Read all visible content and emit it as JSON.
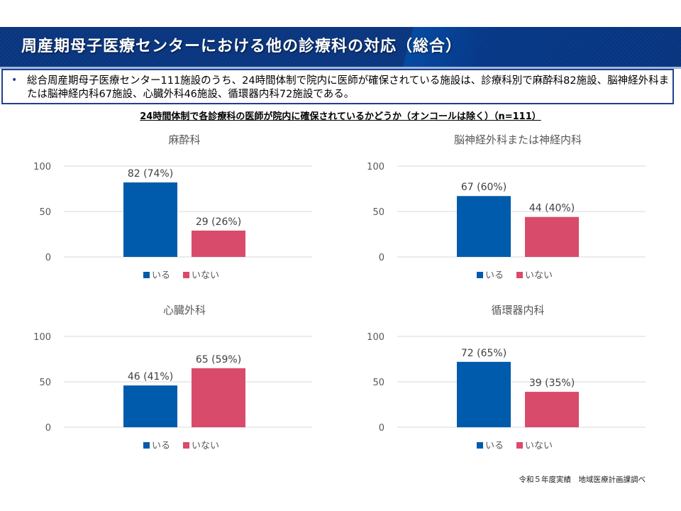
{
  "header": {
    "title": "周産期母子医療センターにおける他の診療科の対応（総合）"
  },
  "summary": {
    "bullet": "•",
    "text": "総合周産期母子医療センター111施設のうち、24時間体制で院内に医師が確保されている施設は、診療科別で麻酔科82施設、脳神経外科または脳神経内科67施設、心臓外科46施設、循環器内科72施設である。"
  },
  "chart_heading": "24時間体制で各診療科の医師が院内に確保されているかどうか（オンコールは除く）（n=111）",
  "colors": {
    "present": "#005bac",
    "absent": "#d94b6a",
    "grid": "#d9d9d9",
    "header_bg": "#0d3b86"
  },
  "chart_data": [
    {
      "type": "bar",
      "title": "麻酔科",
      "categories": [
        "いる",
        "いない"
      ],
      "values": [
        82,
        29
      ],
      "data_labels": [
        "82 (74%)",
        "29 (26%)"
      ],
      "legend": [
        "いる",
        "いない"
      ],
      "legend_position": "bottom",
      "yticks": [
        0,
        50,
        100
      ],
      "ylim": [
        0,
        100
      ],
      "grid": true,
      "xlabel": "",
      "ylabel": ""
    },
    {
      "type": "bar",
      "title": "脳神経外科または神経内科",
      "categories": [
        "いる",
        "いない"
      ],
      "values": [
        67,
        44
      ],
      "data_labels": [
        "67 (60%)",
        "44 (40%)"
      ],
      "legend": [
        "いる",
        "いない"
      ],
      "legend_position": "bottom",
      "yticks": [
        0,
        50,
        100
      ],
      "ylim": [
        0,
        100
      ],
      "grid": true,
      "xlabel": "",
      "ylabel": ""
    },
    {
      "type": "bar",
      "title": "心臓外科",
      "categories": [
        "いる",
        "いない"
      ],
      "values": [
        46,
        65
      ],
      "data_labels": [
        "46 (41%)",
        "65 (59%)"
      ],
      "legend": [
        "いる",
        "いない"
      ],
      "legend_position": "bottom",
      "yticks": [
        0,
        50,
        100
      ],
      "ylim": [
        0,
        100
      ],
      "grid": true,
      "xlabel": "",
      "ylabel": ""
    },
    {
      "type": "bar",
      "title": "循環器内科",
      "categories": [
        "いる",
        "いない"
      ],
      "values": [
        72,
        39
      ],
      "data_labels": [
        "72 (65%)",
        "39 (35%)"
      ],
      "legend": [
        "いる",
        "いない"
      ],
      "legend_position": "bottom",
      "yticks": [
        0,
        50,
        100
      ],
      "ylim": [
        0,
        100
      ],
      "grid": true,
      "xlabel": "",
      "ylabel": ""
    }
  ],
  "source_note": "令和５年度実績　地域医療計画課調べ"
}
